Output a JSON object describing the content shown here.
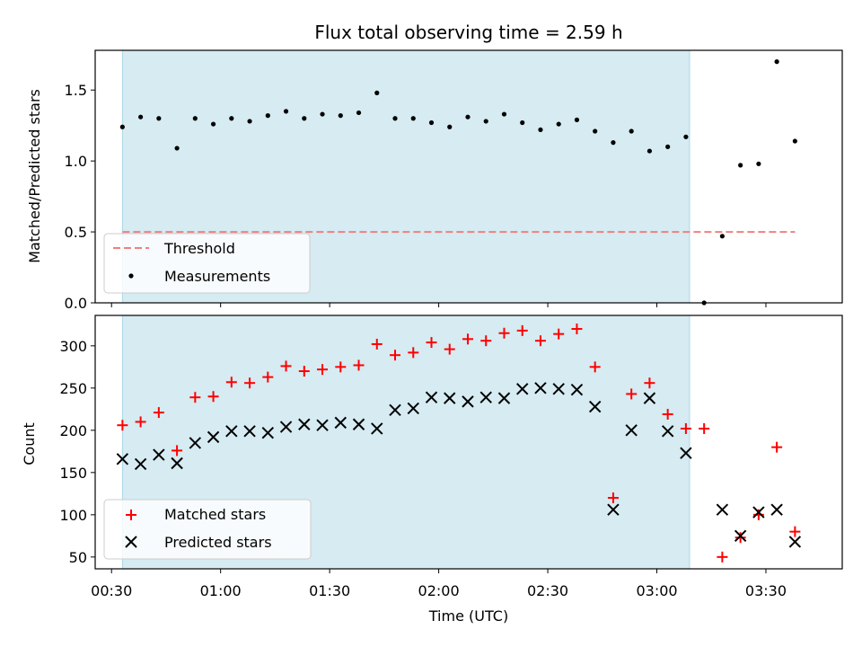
{
  "chart_data": [
    {
      "type": "scatter",
      "title": "Flux total observing time = 2.59 h",
      "xlabel": "",
      "ylabel": "Matched/Predicted stars",
      "ylim": [
        0,
        1.78
      ],
      "yticks": [
        "0.0",
        "0.5",
        "1.0",
        "1.5"
      ],
      "yticks_values": [
        0,
        0.5,
        1.0,
        1.5
      ],
      "shaded_span": [
        "00:33",
        "03:09"
      ],
      "threshold": {
        "name": "Threshold",
        "value": 0.5,
        "x_start": "00:33",
        "x_end": "03:38",
        "color": "#f08080"
      },
      "series": [
        {
          "name": "Measurements",
          "color": "#000000",
          "marker": "dot",
          "x": [
            "00:33",
            "00:38",
            "00:43",
            "00:48",
            "00:53",
            "00:58",
            "01:03",
            "01:08",
            "01:13",
            "01:18",
            "01:23",
            "01:28",
            "01:33",
            "01:38",
            "01:43",
            "01:48",
            "01:53",
            "01:58",
            "02:03",
            "02:08",
            "02:13",
            "02:18",
            "02:23",
            "02:28",
            "02:33",
            "02:38",
            "02:43",
            "02:48",
            "02:53",
            "02:58",
            "03:03",
            "03:08",
            "03:13",
            "03:18",
            "03:23",
            "03:28",
            "03:33",
            "03:38"
          ],
          "y": [
            1.24,
            1.31,
            1.3,
            1.09,
            1.3,
            1.26,
            1.3,
            1.28,
            1.32,
            1.35,
            1.3,
            1.33,
            1.32,
            1.34,
            1.48,
            1.3,
            1.3,
            1.27,
            1.24,
            1.31,
            1.28,
            1.33,
            1.27,
            1.22,
            1.26,
            1.29,
            1.21,
            1.13,
            1.21,
            1.07,
            1.1,
            1.17,
            0.0,
            0.47,
            0.97,
            0.98,
            1.7,
            1.14
          ]
        }
      ],
      "legend": {
        "placement": "lower-left",
        "entries": [
          "Threshold",
          "Measurements"
        ]
      }
    },
    {
      "type": "scatter",
      "title": "",
      "xlabel": "Time (UTC)",
      "ylabel": "Count",
      "ylim": [
        36,
        336
      ],
      "yticks": [
        "50",
        "100",
        "150",
        "200",
        "250",
        "300"
      ],
      "yticks_values": [
        50,
        100,
        150,
        200,
        250,
        300
      ],
      "xticks": [
        "00:30",
        "01:00",
        "01:30",
        "02:00",
        "02:30",
        "03:00",
        "03:30"
      ],
      "xticks_minutes": [
        30,
        60,
        90,
        120,
        150,
        180,
        210
      ],
      "xlim_minutes": [
        25.5,
        231
      ],
      "shaded_span": [
        "00:33",
        "03:09"
      ],
      "series": [
        {
          "name": "Matched stars",
          "color": "#ff0000",
          "marker": "plus",
          "x": [
            "00:33",
            "00:38",
            "00:43",
            "00:48",
            "00:53",
            "00:58",
            "01:03",
            "01:08",
            "01:13",
            "01:18",
            "01:23",
            "01:28",
            "01:33",
            "01:38",
            "01:43",
            "01:48",
            "01:53",
            "01:58",
            "02:03",
            "02:08",
            "02:13",
            "02:18",
            "02:23",
            "02:28",
            "02:33",
            "02:38",
            "02:43",
            "02:48",
            "02:53",
            "02:58",
            "03:03",
            "03:08",
            "03:13",
            "03:18",
            "03:23",
            "03:28",
            "03:33",
            "03:38"
          ],
          "y": [
            206,
            210,
            221,
            176,
            239,
            240,
            257,
            256,
            263,
            276,
            270,
            272,
            275,
            277,
            302,
            289,
            292,
            304,
            296,
            308,
            306,
            315,
            318,
            306,
            314,
            320,
            275,
            120,
            243,
            256,
            219,
            202,
            202,
            50,
            73,
            100,
            180,
            80
          ]
        },
        {
          "name": "Predicted stars",
          "color": "#000000",
          "marker": "x",
          "x": [
            "00:33",
            "00:38",
            "00:43",
            "00:48",
            "00:53",
            "00:58",
            "01:03",
            "01:08",
            "01:13",
            "01:18",
            "01:23",
            "01:28",
            "01:33",
            "01:38",
            "01:43",
            "01:48",
            "01:53",
            "01:58",
            "02:03",
            "02:08",
            "02:13",
            "02:18",
            "02:23",
            "02:28",
            "02:33",
            "02:38",
            "02:43",
            "02:48",
            "02:53",
            "02:58",
            "03:03",
            "03:08",
            "03:18",
            "03:23",
            "03:28",
            "03:33",
            "03:38"
          ],
          "y": [
            166,
            160,
            171,
            161,
            185,
            192,
            199,
            199,
            197,
            204,
            207,
            206,
            209,
            207,
            202,
            224,
            226,
            239,
            238,
            234,
            239,
            238,
            249,
            250,
            249,
            248,
            228,
            106,
            200,
            238,
            199,
            173,
            106,
            75,
            103,
            106,
            68
          ]
        }
      ],
      "legend": {
        "placement": "lower-left",
        "entries": [
          "Matched stars",
          "Predicted stars"
        ]
      }
    }
  ]
}
